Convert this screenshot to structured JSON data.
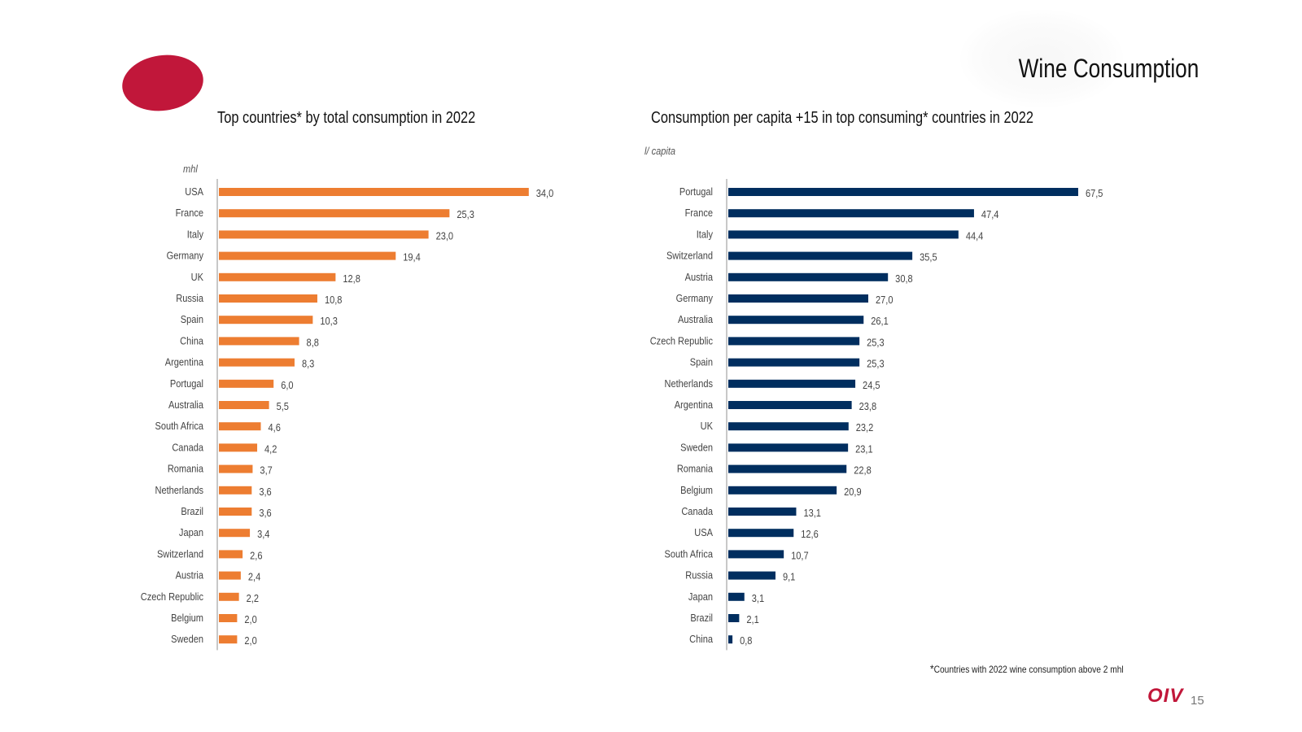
{
  "page_title": "Wine Consumption",
  "footnote": {
    "mark": "*",
    "text": "Countries with 2022 wine consumption above 2 mhl"
  },
  "footer": {
    "logo_text": "OIV",
    "page_number": "15"
  },
  "colors": {
    "left_bars": "#ed7d31",
    "right_bars": "#002e5f",
    "brand": "#c1173a"
  },
  "chart_data": [
    {
      "type": "bar",
      "orientation": "horizontal",
      "title": "Top countries* by total consumption in 2022",
      "unit": "mhl",
      "color": "#ed7d31",
      "categories": [
        "USA",
        "France",
        "Italy",
        "Germany",
        "UK",
        "Russia",
        "Spain",
        "China",
        "Argentina",
        "Portugal",
        "Australia",
        "South Africa",
        "Canada",
        "Romania",
        "Netherlands",
        "Brazil",
        "Japan",
        "Switzerland",
        "Austria",
        "Czech Republic",
        "Belgium",
        "Sweden"
      ],
      "values": [
        34.0,
        25.3,
        23.0,
        19.4,
        12.8,
        10.8,
        10.3,
        8.8,
        8.3,
        6.0,
        5.5,
        4.6,
        4.2,
        3.7,
        3.6,
        3.6,
        3.4,
        2.6,
        2.4,
        2.2,
        2.0,
        2.0
      ],
      "value_labels": [
        "34,0",
        "25,3",
        "23,0",
        "19,4",
        "12,8",
        "10,8",
        "10,3",
        "8,8",
        "8,3",
        "6,0",
        "5,5",
        "4,6",
        "4,2",
        "3,7",
        "3,6",
        "3,6",
        "3,4",
        "2,6",
        "2,4",
        "2,2",
        "2,0",
        "2,0"
      ]
    },
    {
      "type": "bar",
      "orientation": "horizontal",
      "title": "Consumption per capita +15 in top consuming* countries in 2022",
      "unit": "l/ capita",
      "color": "#002e5f",
      "categories": [
        "Portugal",
        "France",
        "Italy",
        "Switzerland",
        "Austria",
        "Germany",
        "Australia",
        "Czech Republic",
        "Spain",
        "Netherlands",
        "Argentina",
        "UK",
        "Sweden",
        "Romania",
        "Belgium",
        "Canada",
        "USA",
        "South Africa",
        "Russia",
        "Japan",
        "Brazil",
        "China"
      ],
      "values": [
        67.5,
        47.4,
        44.4,
        35.5,
        30.8,
        27.0,
        26.1,
        25.3,
        25.3,
        24.5,
        23.8,
        23.2,
        23.1,
        22.8,
        20.9,
        13.1,
        12.6,
        10.7,
        9.1,
        3.1,
        2.1,
        0.8
      ],
      "value_labels": [
        "67,5",
        "47,4",
        "44,4",
        "35,5",
        "30,8",
        "27,0",
        "26,1",
        "25,3",
        "25,3",
        "24,5",
        "23,8",
        "23,2",
        "23,1",
        "22,8",
        "20,9",
        "13,1",
        "12,6",
        "10,7",
        "9,1",
        "3,1",
        "2,1",
        "0,8"
      ]
    }
  ]
}
